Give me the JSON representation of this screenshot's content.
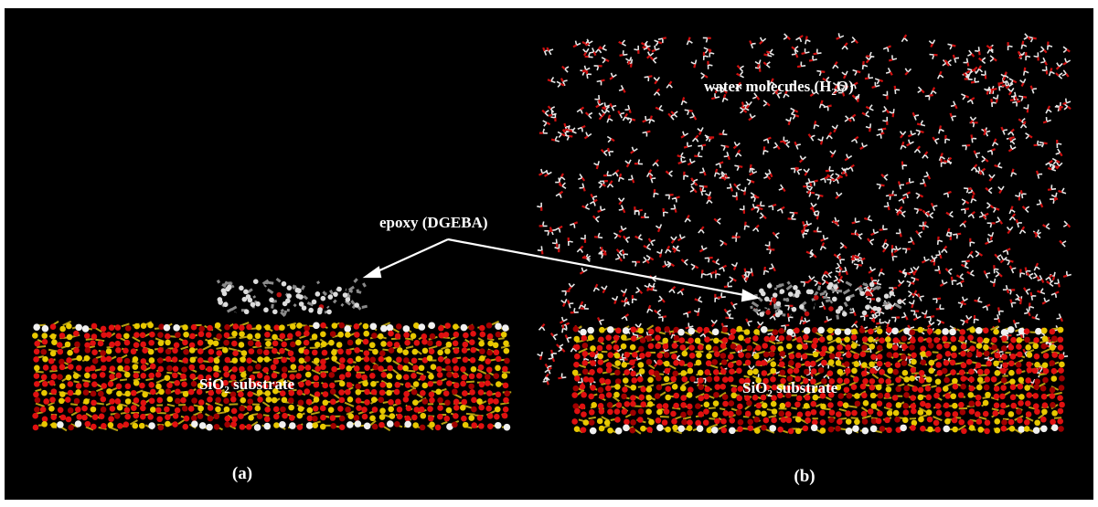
{
  "labels": {
    "water": {
      "before": "water molecules (H",
      "sub": "2",
      "after": "O)"
    },
    "epoxy": "epoxy (DGEBA)",
    "substrate_a": {
      "before": "SiO",
      "sub": "2",
      "after": " substrate"
    },
    "substrate_b": {
      "before": "SiO",
      "sub": "2",
      "after": " substrate"
    },
    "panel_a": "(a)",
    "panel_b": "(b)"
  }
}
